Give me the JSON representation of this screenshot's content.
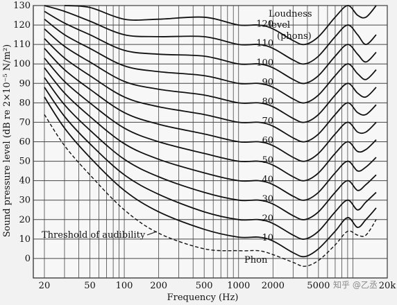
{
  "chart_data": {
    "type": "line",
    "xlabel": "Frequency (Hz)",
    "ylabel": "Sound pressure level (dB re 2×10⁻⁵ N/m²)",
    "x_scale": "log",
    "xlim": [
      16,
      20000
    ],
    "ylim": [
      -10,
      130
    ],
    "x_ticks": [
      {
        "value": 20,
        "label": "20"
      },
      {
        "value": 50,
        "label": "50"
      },
      {
        "value": 100,
        "label": "100"
      },
      {
        "value": 200,
        "label": "200"
      },
      {
        "value": 500,
        "label": "500"
      },
      {
        "value": 1000,
        "label": "1000"
      },
      {
        "value": 2000,
        "label": "2000"
      },
      {
        "value": 5000,
        "label": "5000"
      },
      {
        "value": 20000,
        "label": "20k"
      }
    ],
    "y_ticks": [
      0,
      10,
      20,
      30,
      40,
      50,
      60,
      70,
      80,
      90,
      100,
      110,
      120,
      130
    ],
    "grid": true,
    "x": [
      20,
      30,
      50,
      100,
      200,
      500,
      1000,
      1500,
      2000,
      3000,
      3800,
      5000,
      7000,
      9000,
      11000,
      13000,
      16000
    ],
    "series": [
      {
        "name": "0",
        "style": "dashed",
        "values": [
          74,
          58,
          43,
          25,
          13,
          5,
          4,
          4,
          2,
          -2,
          -4,
          -1,
          7,
          14,
          12,
          12,
          20
        ]
      },
      {
        "name": "10",
        "values": [
          83,
          67,
          52,
          35,
          24,
          15,
          11,
          11,
          9,
          3,
          1,
          5,
          14,
          21,
          16,
          20,
          26
        ]
      },
      {
        "name": "20",
        "values": [
          88,
          73,
          59,
          43,
          33,
          24,
          20,
          20,
          18,
          12,
          10,
          14,
          24,
          30,
          25,
          29,
          34
        ]
      },
      {
        "name": "30",
        "values": [
          93,
          79,
          66,
          51,
          42,
          34,
          30,
          30,
          28,
          22,
          20,
          24,
          34,
          40,
          35,
          38,
          43
        ]
      },
      {
        "name": "40",
        "values": [
          98,
          85,
          73,
          59,
          51,
          44,
          40,
          40,
          38,
          32,
          30,
          34,
          44,
          50,
          45,
          47,
          52
        ]
      },
      {
        "name": "50",
        "values": [
          103,
          91,
          80,
          67,
          60,
          54,
          50,
          50,
          48,
          42,
          40,
          44,
          54,
          60,
          55,
          56,
          61
        ]
      },
      {
        "name": "60",
        "values": [
          108,
          97,
          87,
          75,
          69,
          64,
          60,
          60,
          58,
          52,
          50,
          54,
          64,
          70,
          65,
          65,
          70
        ]
      },
      {
        "name": "70",
        "values": [
          113,
          103,
          94,
          83,
          78,
          74,
          70,
          70,
          68,
          62,
          60,
          64,
          74,
          80,
          75,
          74,
          79
        ]
      },
      {
        "name": "80",
        "values": [
          118,
          109,
          101,
          91,
          87,
          84,
          80,
          80,
          78,
          72,
          70,
          74,
          84,
          90,
          85,
          83,
          88
        ]
      },
      {
        "name": "90",
        "values": [
          123,
          115,
          108,
          99,
          96,
          94,
          90,
          90,
          88,
          82,
          80,
          84,
          94,
          100,
          95,
          92,
          97
        ]
      },
      {
        "name": "100",
        "values": [
          127,
          121,
          115,
          107,
          105,
          104,
          100,
          100,
          98,
          92,
          90,
          94,
          104,
          110,
          105,
          101,
          106
        ]
      },
      {
        "name": "110",
        "values": [
          130,
          127,
          122,
          115,
          114,
          114,
          110,
          110,
          108,
          102,
          100,
          104,
          114,
          120,
          115,
          110,
          115
        ]
      },
      {
        "name": "120",
        "values": [
          null,
          130,
          129,
          123,
          123,
          124,
          120,
          120,
          118,
          112,
          110,
          114,
          124,
          130,
          125,
          124,
          130
        ]
      }
    ],
    "curve_labels": [
      {
        "text": "120",
        "x": 1700,
        "y": 121
      },
      {
        "text": "110",
        "x": 1700,
        "y": 111
      },
      {
        "text": "100",
        "x": 1700,
        "y": 101
      },
      {
        "text": "90",
        "x": 1800,
        "y": 91
      },
      {
        "text": "80",
        "x": 1800,
        "y": 81
      },
      {
        "text": "70",
        "x": 1800,
        "y": 71
      },
      {
        "text": "60",
        "x": 1800,
        "y": 61
      },
      {
        "text": "50",
        "x": 1800,
        "y": 51
      },
      {
        "text": "40",
        "x": 1800,
        "y": 41
      },
      {
        "text": "30",
        "x": 1800,
        "y": 31
      },
      {
        "text": "20",
        "x": 1800,
        "y": 21
      },
      {
        "text": "10",
        "x": 1800,
        "y": 11
      }
    ],
    "annotations": {
      "loudness_line1": "Loudness",
      "loudness_line2": "level",
      "loudness_line3": "(phons)",
      "threshold": "Threshold of audibility",
      "phon": "Phon"
    }
  },
  "watermark": "知乎 @乙丞"
}
